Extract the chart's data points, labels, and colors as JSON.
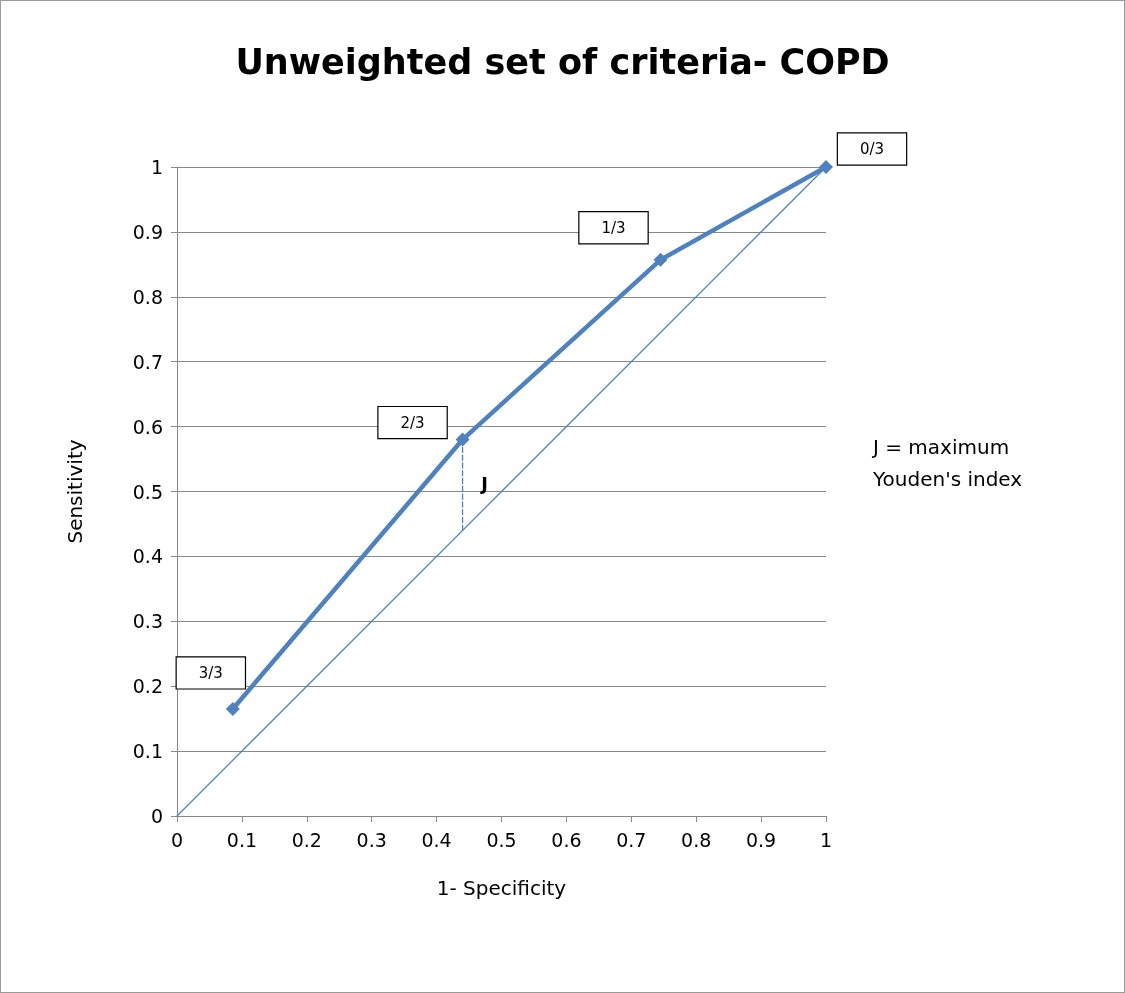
{
  "chart_data": {
    "type": "line",
    "title": "Unweighted set of criteria- COPD",
    "xlabel": "1- Specificity",
    "ylabel": "Sensitivity",
    "series": [
      {
        "color": "#4f81bd",
        "x": [
          0.086,
          0.44,
          0.745,
          1
        ],
        "values": [
          0.165,
          0.58,
          0.857,
          1
        ],
        "marker": "diamond",
        "line_style": "solid"
      },
      {
        "color": "#4f81bd",
        "x": [
          0,
          1
        ],
        "values": [
          0,
          1
        ],
        "marker": "none",
        "line_style": "solid"
      },
      {
        "color": "#4f81bd",
        "x": [
          0.44,
          0.44
        ],
        "values": [
          0.44,
          0.58
        ],
        "marker": "none",
        "line_style": "dashed"
      }
    ],
    "annotations": [
      {
        "text": "3/3",
        "x": 0.086,
        "y": 0.165
      },
      {
        "text": "2/3",
        "x": 0.44,
        "y": 0.58
      },
      {
        "text": "1/3",
        "x": 0.745,
        "y": 0.857
      },
      {
        "text": "0/3",
        "x": 1,
        "y": 1
      },
      {
        "text": "J",
        "x": 0.44,
        "y": 0.51
      },
      "J = maximum Youden's index"
    ],
    "xlim": [
      0,
      1
    ],
    "ylim": [
      0,
      1
    ],
    "xticks": [
      0,
      0.1,
      0.2,
      0.3,
      0.4,
      0.5,
      0.6,
      0.7,
      0.8,
      0.9,
      1
    ],
    "yticks": [
      0,
      0.1,
      0.2,
      0.3,
      0.4,
      0.5,
      0.6,
      0.7,
      0.8,
      0.9,
      1
    ],
    "grid": "y"
  }
}
